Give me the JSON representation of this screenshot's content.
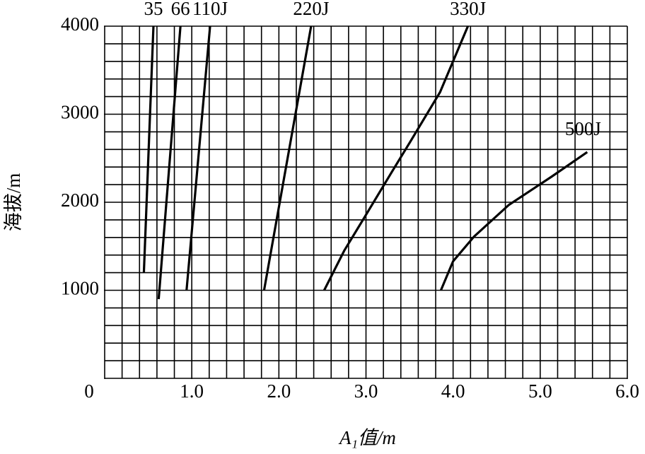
{
  "chart_data": {
    "type": "line",
    "x_label": "A₁值/m",
    "y_label": "海拔/m",
    "xlim": [
      0,
      6
    ],
    "ylim": [
      0,
      4000
    ],
    "xticks": [
      0,
      {
        "value": 1,
        "label": "1.0"
      },
      {
        "value": 2,
        "label": "2.0"
      },
      {
        "value": 3,
        "label": "3.0"
      },
      {
        "value": 4,
        "label": "4.0"
      },
      {
        "value": 5,
        "label": "5.0"
      },
      {
        "value": 6,
        "label": "6.0"
      }
    ],
    "yticks": [
      1000,
      2000,
      3000,
      4000
    ],
    "grid": true,
    "minor_grid": {
      "x": 0.2,
      "y": 200
    },
    "color": "#000000",
    "series": [
      {
        "name": "35",
        "x": [
          0.45,
          0.56
        ],
        "values": [
          1200,
          4000
        ]
      },
      {
        "name": "66",
        "x": [
          0.62,
          0.87
        ],
        "values": [
          900,
          4000
        ]
      },
      {
        "name": "110J",
        "x": [
          0.94,
          1.21
        ],
        "values": [
          1000,
          4000
        ]
      },
      {
        "name": "220J",
        "x": [
          1.83,
          2.37
        ],
        "values": [
          1000,
          4000
        ]
      },
      {
        "name": "330J",
        "x": [
          2.52,
          2.75,
          3.02,
          3.3,
          3.51,
          3.85,
          4.17
        ],
        "values": [
          1000,
          1450,
          1890,
          2350,
          2690,
          3250,
          4000
        ]
      },
      {
        "name": "500J",
        "x": [
          3.86,
          4.0,
          4.24,
          4.64,
          5.13,
          5.54
        ],
        "values": [
          1000,
          1330,
          1610,
          1970,
          2290,
          2570
        ]
      }
    ]
  }
}
